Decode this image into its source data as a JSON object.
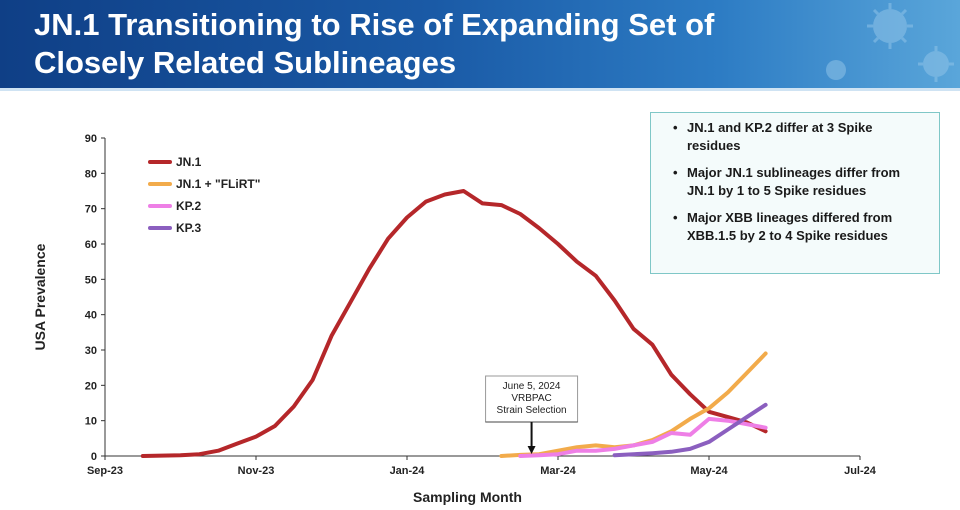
{
  "header": {
    "title_line1": "JN.1 Transitioning to Rise of Expanding Set of",
    "title_line2": "Closely Related Sublineages"
  },
  "notes": [
    "JN.1 and KP.2 differ at 3 Spike residues",
    "Major JN.1 sublineages differ from JN.1 by 1 to 5 Spike residues",
    "Major XBB lineages differed from XBB.1.5 by 2 to 4 Spike residues"
  ],
  "annotation": {
    "line1": "June 5, 2024",
    "line2": "VRBPAC",
    "line3": "Strain Selection",
    "x": 5.65
  },
  "chart_data": {
    "type": "line",
    "title": "",
    "xlabel": "Sampling Month",
    "ylabel": "USA Prevalence",
    "xlim": [
      0,
      10
    ],
    "ylim": [
      0,
      90
    ],
    "x_tick_labels": [
      "Sep-23",
      "Nov-23",
      "Jan-24",
      "Mar-24",
      "May-24",
      "Jul-24"
    ],
    "x_tick_values": [
      0,
      2,
      4,
      6,
      8,
      10
    ],
    "y_ticks": [
      0,
      10,
      20,
      30,
      40,
      50,
      60,
      70,
      80,
      90
    ],
    "legend_position": "top-left",
    "series": [
      {
        "name": "JN.1",
        "color": "#b5272a",
        "x": [
          0.5,
          0.75,
          1.0,
          1.25,
          1.5,
          1.75,
          2.0,
          2.25,
          2.5,
          2.75,
          3.0,
          3.25,
          3.5,
          3.75,
          4.0,
          4.25,
          4.5,
          4.75,
          5.0,
          5.25,
          5.5,
          5.75,
          6.0,
          6.25,
          6.5,
          6.75,
          7.0,
          7.25,
          7.5,
          7.75,
          8.0,
          8.25,
          8.5,
          8.75
        ],
        "y": [
          0,
          0.1,
          0.2,
          0.5,
          1.5,
          3.5,
          5.5,
          8.5,
          14,
          21.5,
          34,
          43.5,
          53,
          61.5,
          67.5,
          72,
          74,
          75,
          71.5,
          71,
          68.5,
          64.5,
          60,
          55,
          51,
          44,
          36,
          31.5,
          23,
          17.5,
          12.5,
          11,
          9.5,
          7
        ]
      },
      {
        "name": "JN.1 + \"FLiRT\"",
        "color": "#f2ab4b",
        "x": [
          5.25,
          5.5,
          5.75,
          6.0,
          6.25,
          6.5,
          6.75,
          7.0,
          7.25,
          7.5,
          7.75,
          8.0,
          8.25,
          8.5,
          8.75
        ],
        "y": [
          0,
          0.3,
          0.5,
          1.5,
          2.5,
          3,
          2.5,
          3,
          4.5,
          7,
          10.5,
          13.5,
          18,
          23.5,
          29
        ]
      },
      {
        "name": "KP.2",
        "color": "#ee7fe6",
        "x": [
          5.5,
          5.75,
          6.0,
          6.25,
          6.5,
          6.75,
          7.0,
          7.25,
          7.5,
          7.75,
          8.0,
          8.25,
          8.5,
          8.75
        ],
        "y": [
          0,
          0.2,
          0.5,
          1.5,
          1.5,
          2,
          3,
          4,
          6.5,
          6,
          10.5,
          10,
          9,
          8
        ]
      },
      {
        "name": "KP.3",
        "color": "#8b5fbf",
        "x": [
          6.75,
          7.0,
          7.25,
          7.5,
          7.75,
          8.0,
          8.25,
          8.5,
          8.75
        ],
        "y": [
          0.2,
          0.5,
          0.8,
          1.2,
          2,
          4,
          7.5,
          11,
          14.5
        ]
      }
    ]
  }
}
